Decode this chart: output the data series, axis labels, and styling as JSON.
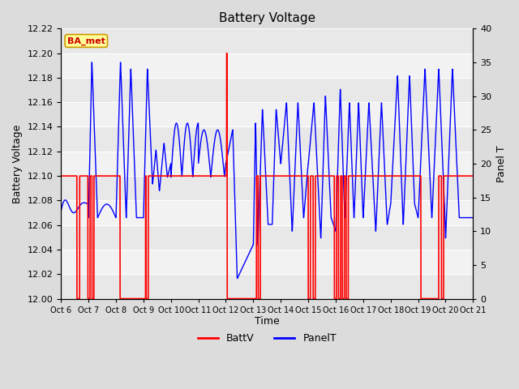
{
  "title": "Battery Voltage",
  "xlabel": "Time",
  "ylabel_left": "Battery Voltage",
  "ylabel_right": "Panel T",
  "ylim_left": [
    12.0,
    12.22
  ],
  "ylim_right": [
    0,
    40
  ],
  "yticks_left": [
    12.0,
    12.02,
    12.04,
    12.06,
    12.08,
    12.1,
    12.12,
    12.14,
    12.16,
    12.18,
    12.2,
    12.22
  ],
  "yticks_right": [
    0,
    5,
    10,
    15,
    20,
    25,
    30,
    35,
    40
  ],
  "xtick_labels": [
    "Oct 6",
    "Oct 7",
    "Oct 8",
    "Oct 9",
    "Oct 10",
    "Oct 11",
    "Oct 12",
    "Oct 13",
    "Oct 14",
    "Oct 15",
    "Oct 16",
    "Oct 17",
    "Oct 18",
    "Oct 19",
    "Oct 20",
    "Oct 21"
  ],
  "background_color": "#dcdcdc",
  "plot_bg_color": "#ebebeb",
  "grid_color": "#ffffff",
  "annotation_text": "BA_met",
  "annotation_bg": "#ffff99",
  "annotation_border": "#cc9900",
  "battv_color": "#ff0000",
  "panelt_color": "#0000ff",
  "legend_battv": "BattV",
  "legend_panelt": "PanelT"
}
